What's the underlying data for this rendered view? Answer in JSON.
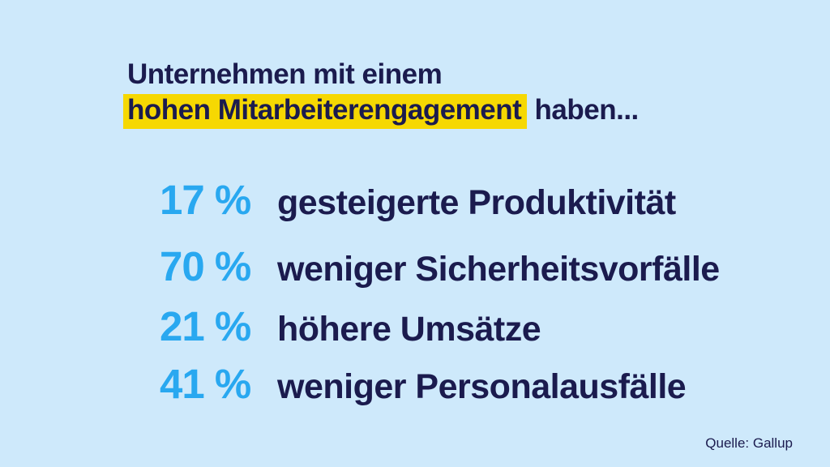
{
  "colors": {
    "background": "#cee9fb",
    "text_navy": "#1b1b4e",
    "accent_blue": "#29a8f0",
    "highlight_yellow": "#f6d802"
  },
  "title": {
    "line1": "Unternehmen mit einem",
    "highlight": "hohen Mitarbeiterengagement",
    "suffix": "haben..."
  },
  "stats": [
    {
      "value": "17 %",
      "label": "gesteigerte Produktivität"
    },
    {
      "value": "70 %",
      "label": "weniger Sicherheitsvorfälle"
    },
    {
      "value": "21 %",
      "label": "höhere Umsätze"
    },
    {
      "value": "41 %",
      "label": "weniger Personalausfälle"
    }
  ],
  "source": "Quelle: Gallup",
  "chart_data": {
    "type": "table",
    "title": "Unternehmen mit einem hohen Mitarbeiterengagement haben...",
    "categories": [
      "gesteigerte Produktivität",
      "weniger Sicherheitsvorfälle",
      "höhere Umsätze",
      "weniger Personalausfälle"
    ],
    "values": [
      17,
      70,
      21,
      41
    ],
    "unit": "%",
    "source": "Quelle: Gallup",
    "legend_position": "none",
    "grid": false
  }
}
